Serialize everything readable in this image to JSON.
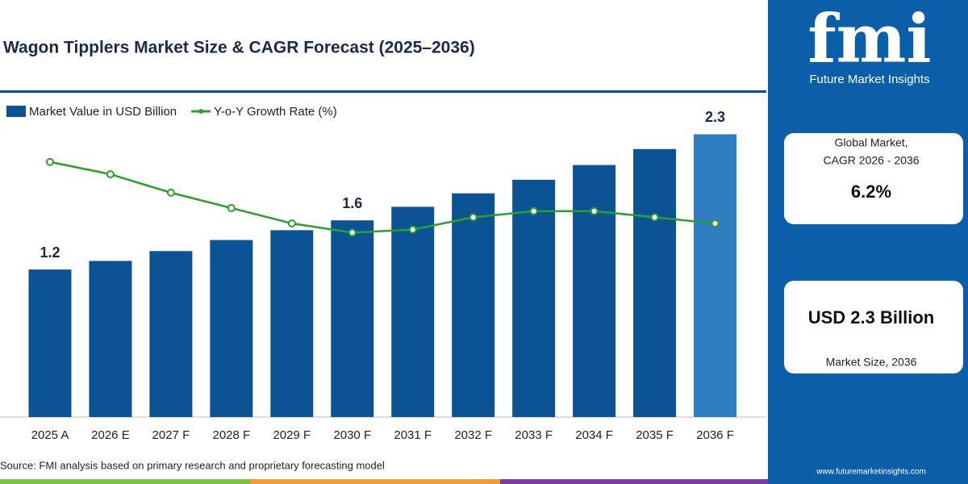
{
  "chart_data": {
    "type": "combo",
    "title": "Wagon Tipplers Market Size & CAGR Forecast (2025–2036)",
    "categories": [
      "2025 A",
      "2026 E",
      "2027 F",
      "2028 F",
      "2029 F",
      "2030 F",
      "2031 F",
      "2032 F",
      "2033 F",
      "2034 F",
      "2035 F",
      "2036 F"
    ],
    "series": [
      {
        "name": "Market Value in USD Billion",
        "type": "bar",
        "color": "#0b5394",
        "highlight_color": "#2f7cc0",
        "values": [
          1.2,
          1.27,
          1.35,
          1.44,
          1.52,
          1.6,
          1.71,
          1.82,
          1.93,
          2.05,
          2.18,
          2.3
        ],
        "value_labels": [
          "1.2",
          null,
          null,
          null,
          null,
          "1.6",
          null,
          null,
          null,
          null,
          null,
          "2.3"
        ]
      },
      {
        "name": "Y-o-Y Growth Rate (%)",
        "type": "line",
        "color": "#2ca02c",
        "axis": "y2",
        "values": [
          8.3,
          7.9,
          7.3,
          6.8,
          6.3,
          6.0,
          6.1,
          6.5,
          6.7,
          6.7,
          6.5,
          6.3
        ]
      }
    ],
    "ylim": [
      0,
      2.5
    ],
    "y2lim": [
      0,
      10
    ],
    "grid": false,
    "legend": "top-left"
  },
  "source": "Source: FMI analysis based on primary research and proprietary forecasting model",
  "brand": {
    "logo": "fmi",
    "name": "Future Market Insights",
    "url": "www.futuremarketinsights.com"
  },
  "panel": {
    "cagr_label": [
      "Global Market,",
      "CAGR 2026 - 2036"
    ],
    "cagr_value": "6.2%",
    "size_value": "USD 2.3 Billion",
    "size_label": "Market Size, 2036"
  }
}
